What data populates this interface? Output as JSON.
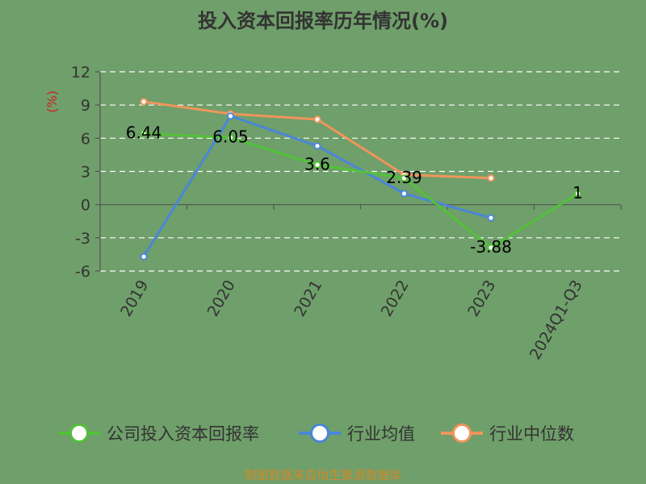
{
  "chart_data": {
    "type": "line",
    "title": "投入资本回报率历年情况(%)",
    "ylabel": "(%)",
    "categories": [
      "2019",
      "2020",
      "2021",
      "2022",
      "2023",
      "2024Q1-Q3"
    ],
    "ylim": [
      -6,
      12
    ],
    "yticks": [
      12,
      9,
      6,
      3,
      0,
      -3,
      -6
    ],
    "ytick_labels": [
      "12",
      "9",
      "6",
      "3",
      "0",
      "-3",
      "-6"
    ],
    "grid": true,
    "legend_position": "bottom",
    "series": [
      {
        "name": "公司投入资本回报率",
        "color": "#52c13a",
        "values": [
          6.44,
          6.05,
          3.6,
          2.39,
          -3.88,
          1
        ],
        "labels": [
          "6.44",
          "6.05",
          "3.6",
          "2.39",
          "-3.88",
          "1"
        ]
      },
      {
        "name": "行业均值",
        "color": "#4a86d8",
        "values": [
          -4.7,
          8.0,
          5.3,
          1.0,
          -1.2,
          null
        ],
        "labels": []
      },
      {
        "name": "行业中位数",
        "color": "#f0955b",
        "values": [
          9.3,
          8.2,
          7.7,
          2.7,
          2.4,
          null
        ],
        "labels": []
      }
    ]
  },
  "source_text": "制图数据来自恒生聚源数据库"
}
